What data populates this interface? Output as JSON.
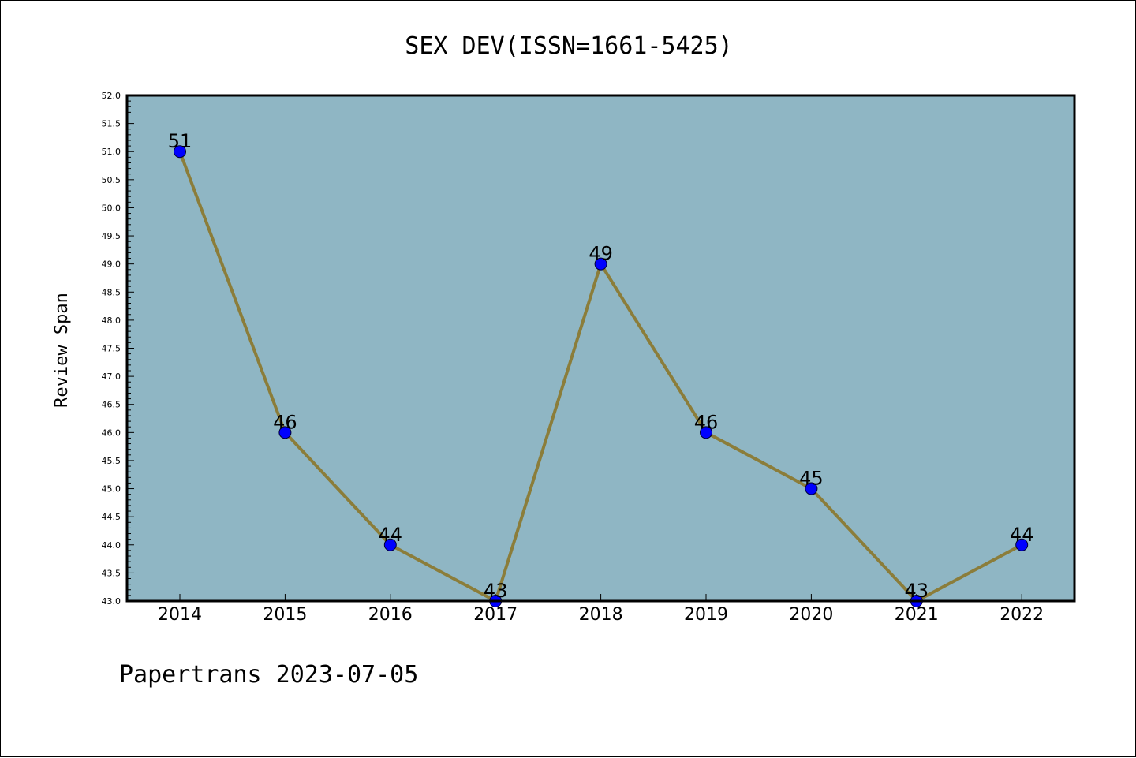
{
  "chart_data": {
    "type": "line",
    "title": "SEX DEV(ISSN=1661-5425)",
    "ylabel": "Review Span",
    "xlabel": "",
    "categories": [
      "2014",
      "2015",
      "2016",
      "2017",
      "2018",
      "2019",
      "2020",
      "2021",
      "2022"
    ],
    "values": [
      51,
      46,
      44,
      43,
      49,
      46,
      45,
      43,
      44
    ],
    "data_labels": [
      "51",
      "46",
      "44",
      "43",
      "49",
      "46",
      "45",
      "43",
      "44"
    ],
    "ylim": [
      43.0,
      52.0
    ],
    "y_ticks": [
      "43.0",
      "43.5",
      "44.0",
      "44.5",
      "45.0",
      "45.5",
      "46.0",
      "46.5",
      "47.0",
      "47.5",
      "48.0",
      "48.5",
      "49.0",
      "49.5",
      "50.0",
      "50.5",
      "51.0",
      "51.5",
      "52.0"
    ],
    "grid": false,
    "colors": {
      "plot_background": "#8fb6c4",
      "line": "#8b7d3a",
      "marker": "#0000ff"
    }
  },
  "footer": {
    "text": "Papertrans 2023-07-05"
  }
}
